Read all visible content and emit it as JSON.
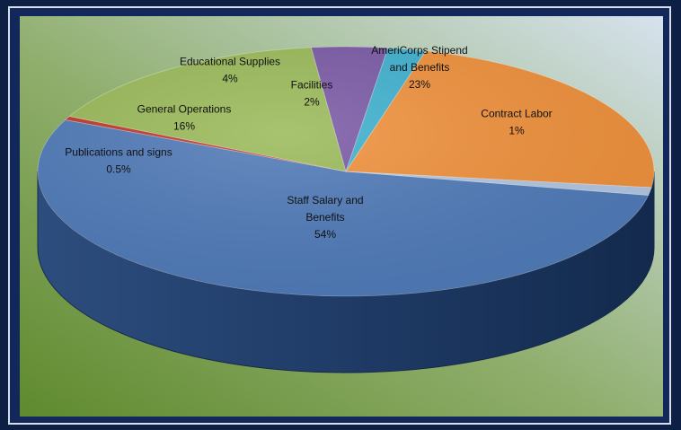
{
  "chart_data": {
    "type": "pie",
    "title": "",
    "legend": "none",
    "slices": [
      {
        "label_lines": [
          "Staff Salary and",
          "Benefits"
        ],
        "value_label": "54%",
        "value": 54,
        "color": "#4f7ab8"
      },
      {
        "label_lines": [
          "Publications and signs"
        ],
        "value_label": "0.5%",
        "value": 0.5,
        "color": "#c0392b"
      },
      {
        "label_lines": [
          "General Operations"
        ],
        "value_label": "16%",
        "value": 16,
        "color": "#9aba59"
      },
      {
        "label_lines": [
          "Educational Supplies"
        ],
        "value_label": "4%",
        "value": 4,
        "color": "#7b5aa6"
      },
      {
        "label_lines": [
          "Facilities"
        ],
        "value_label": "2%",
        "value": 2,
        "color": "#3fb1cf"
      },
      {
        "label_lines": [
          "AmeriCorps Stipend",
          "and Benefits"
        ],
        "value_label": "23%",
        "value": 23,
        "color": "#f0913c"
      },
      {
        "label_lines": [
          "Contract Labor"
        ],
        "value_label": "1%",
        "value": 1,
        "color": "#b3c6e2"
      }
    ]
  }
}
